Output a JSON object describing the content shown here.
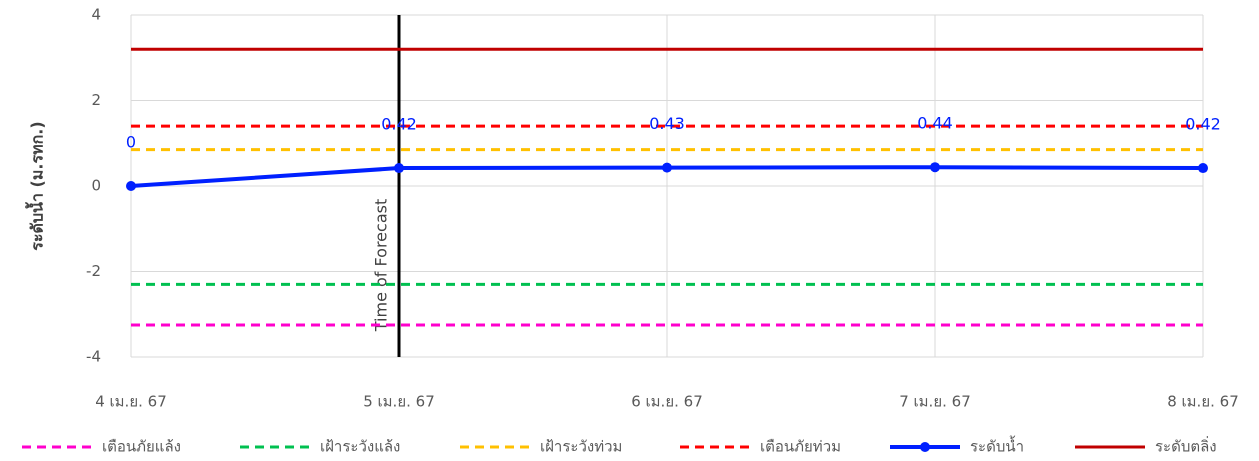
{
  "chart_data": {
    "type": "line",
    "y_label": "ระดับน้ำ (ม.รทก.)",
    "categories": [
      "4 เม.ย. 67",
      "5 เม.ย. 67",
      "6 เม.ย. 67",
      "7 เม.ย. 67",
      "8 เม.ย. 67"
    ],
    "ylim": [
      -4,
      4
    ],
    "yticks": [
      -4,
      -2,
      0,
      2,
      4
    ],
    "grid": true,
    "legend": "bottom",
    "forecast_marker": {
      "label": "Time of Forecast",
      "x": "5 เม.ย. 67"
    },
    "series": [
      {
        "name": "เตือนภัยแล้ง",
        "color": "#ff00cc",
        "style": "dashed",
        "values": [
          -3.25,
          -3.25,
          -3.25,
          -3.25,
          -3.25
        ]
      },
      {
        "name": "เฝ้าระวังแล้ง",
        "color": "#00c050",
        "style": "dashed",
        "values": [
          -2.3,
          -2.3,
          -2.3,
          -2.3,
          -2.3
        ]
      },
      {
        "name": "เฝ้าระวังท่วม",
        "color": "#ffc000",
        "style": "dashed",
        "values": [
          0.85,
          0.85,
          0.85,
          0.85,
          0.85
        ]
      },
      {
        "name": "เตือนภัยท่วม",
        "color": "#ff0000",
        "style": "dashed",
        "values": [
          1.4,
          1.4,
          1.4,
          1.4,
          1.4
        ]
      },
      {
        "name": "ระดับน้ำ",
        "color": "#0020ff",
        "style": "solid",
        "marker": true,
        "data_labels": true,
        "values": [
          0,
          0.42,
          0.43,
          0.44,
          0.42
        ]
      },
      {
        "name": "ระดับตลิ่ง",
        "color": "#c00000",
        "style": "solid",
        "values": [
          3.2,
          3.2,
          3.2,
          3.2,
          3.2
        ]
      }
    ]
  }
}
